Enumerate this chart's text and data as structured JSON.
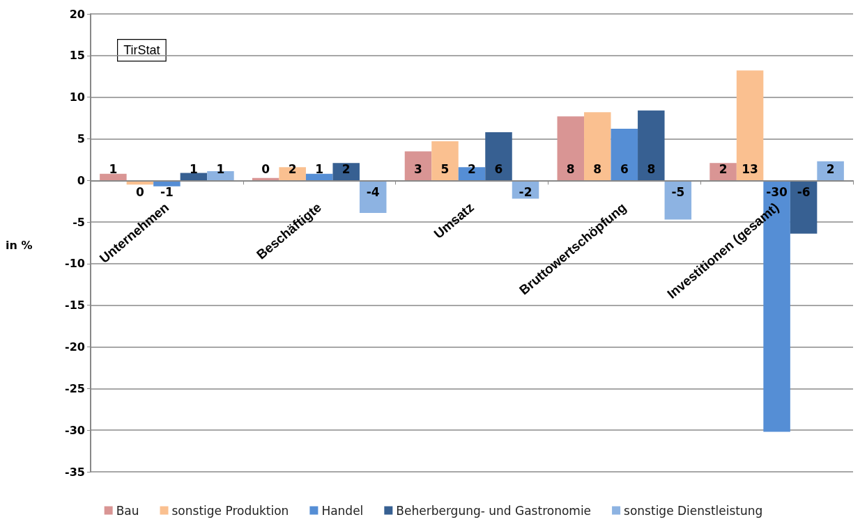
{
  "chart_data": {
    "type": "bar",
    "ylabel": "in %",
    "annotations": [
      "TirStat"
    ],
    "categories": [
      "Unternehmen",
      "Beschäftigte",
      "Umsatz",
      "Bruttowertschöpfung",
      "Investitionen (gesamt)"
    ],
    "series": [
      {
        "name": "Bau",
        "color": "#d99594",
        "values": [
          0.8,
          0.3,
          3.5,
          7.7,
          2.1
        ],
        "value_labels": [
          "1",
          "0",
          "3",
          "8",
          "2"
        ]
      },
      {
        "name": "sonstige Produktion",
        "color": "#fac090",
        "values": [
          -0.5,
          1.6,
          4.7,
          8.2,
          13.2
        ],
        "value_labels": [
          "0",
          "2",
          "5",
          "8",
          "13"
        ]
      },
      {
        "name": "Handel",
        "color": "#558ed5",
        "values": [
          -0.7,
          0.8,
          1.6,
          6.2,
          -30.2
        ],
        "value_labels": [
          "-1",
          "1",
          "2",
          "6",
          "-30"
        ]
      },
      {
        "name": "Beherbergung- und Gastronomie",
        "color": "#376092",
        "values": [
          0.9,
          2.1,
          5.8,
          8.4,
          -6.4
        ],
        "value_labels": [
          "1",
          "2",
          "6",
          "8",
          "-6"
        ]
      },
      {
        "name": "sonstige Dienstleistung",
        "color": "#8db3e2",
        "values": [
          1.1,
          -3.9,
          -2.2,
          -4.7,
          2.3
        ],
        "value_labels": [
          "1",
          "-4",
          "-2",
          "-5",
          "2"
        ]
      }
    ],
    "ylim": [
      -35,
      20
    ],
    "yticks": [
      -35,
      -30,
      -25,
      -20,
      -15,
      -10,
      -5,
      0,
      5,
      10,
      15,
      20
    ],
    "grid": "y",
    "legend": "bottom"
  }
}
